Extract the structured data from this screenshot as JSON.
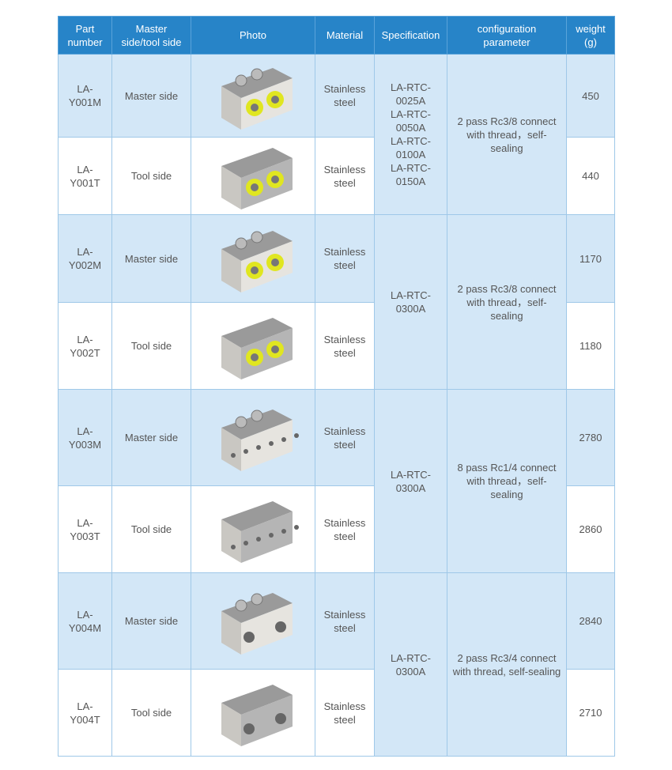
{
  "headers": [
    "Part\nnumber",
    "Master\nside/tool side",
    "Photo",
    "Material",
    "Specification",
    "configuration\nparameter",
    "weight\n(g)"
  ],
  "rows": [
    {
      "part": "LA-\nY001M",
      "side": "Master side",
      "material": "Stainless\nsteel",
      "weight": "450",
      "photo": "y001-master"
    },
    {
      "part": "LA-\nY001T",
      "side": "Tool side",
      "material": "Stainless\nsteel",
      "weight": "440",
      "photo": "y001-tool"
    },
    {
      "part": "LA-\nY002M",
      "side": "Master side",
      "material": "Stainless\nsteel",
      "weight": "1170",
      "photo": "y002-master"
    },
    {
      "part": "LA-\nY002T",
      "side": "Tool side",
      "material": "Stainless\nsteel",
      "weight": "1180",
      "photo": "y002-tool"
    },
    {
      "part": "LA-\nY003M",
      "side": "Master side",
      "material": "Stainless\nsteel",
      "weight": "2780",
      "photo": "y003-master"
    },
    {
      "part": "LA-\nY003T",
      "side": "Tool side",
      "material": "Stainless\nsteel",
      "weight": "2860",
      "photo": "y003-tool"
    },
    {
      "part": "LA-\nY004M",
      "side": "Master side",
      "material": "Stainless\nsteel",
      "weight": "2840",
      "photo": "y004-master"
    },
    {
      "part": "LA-\nY004T",
      "side": "Tool side",
      "material": "Stainless\nsteel",
      "weight": "2710",
      "photo": "y004-tool"
    }
  ],
  "groups": [
    {
      "spec": "LA-RTC-\n0025A\nLA-RTC-\n0050A\nLA-RTC-\n0100A\nLA-RTC-\n0150A",
      "config": "2 pass Rc3/8 connect\nwith thread，self-\nsealing"
    },
    {
      "spec": "LA-RTC-\n0300A",
      "config": "2 pass Rc3/8 connect\nwith thread，self-\nsealing"
    },
    {
      "spec": "LA-RTC-\n0300A",
      "config": "8 pass Rc1/4 connect\nwith thread，self-\nsealing"
    },
    {
      "spec": "LA-RTC-\n0300A",
      "config": "2 pass Rc3/4 connect\nwith thread, self-sealing"
    }
  ],
  "colors": {
    "header": "#2784c8",
    "row_highlight": "#d3e7f7",
    "port_yellow": "#e0e620"
  }
}
